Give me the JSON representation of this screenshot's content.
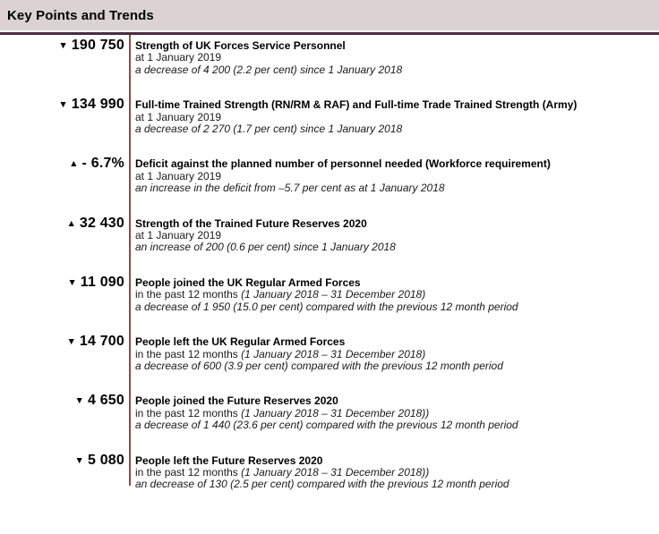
{
  "header": {
    "title": "Key Points and Trends"
  },
  "colors": {
    "header_bar_bg": "#dbd2d4",
    "header_rule": "#4a2d3e",
    "divider_line": "#8e4b45",
    "text": "#1a1a1a"
  },
  "entries": [
    {
      "trend": "down",
      "arrow": "▼",
      "figure": "190 750",
      "title": "Strength of UK Forces Service Personnel",
      "period": "at 1 January 2019",
      "period_italic": "",
      "change": "a decrease of 4 200 (2.2 per cent) since 1 January 2018"
    },
    {
      "trend": "down",
      "arrow": "▼",
      "figure": "134 990",
      "title": "Full-time Trained Strength (RN/RM & RAF) and Full-time Trade Trained Strength (Army)",
      "period": "at 1 January 2019",
      "period_italic": "",
      "change": "a decrease of 2 270 (1.7 per cent) since 1 January 2018"
    },
    {
      "trend": "up",
      "arrow": "▲",
      "figure": "- 6.7%",
      "title": "Deficit against the planned number of personnel needed (Workforce requirement)",
      "period": "at 1 January 2019",
      "period_italic": "",
      "change": "an increase in the deficit from –5.7 per cent as at 1 January 2018"
    },
    {
      "trend": "up",
      "arrow": "▲",
      "figure": "32 430",
      "title": "Strength of the Trained Future Reserves 2020",
      "period": "at 1 January 2019",
      "period_italic": "",
      "change": "an increase of 200 (0.6 per cent) since 1 January 2018"
    },
    {
      "trend": "down",
      "arrow": "▼",
      "figure": "11 090",
      "title": "People joined the UK Regular Armed Forces",
      "period": "in the past 12 months ",
      "period_italic": "(1 January 2018 – 31 December 2018)",
      "change": "a decrease of 1 950 (15.0 per cent) compared with the previous 12 month period"
    },
    {
      "trend": "down",
      "arrow": "▼",
      "figure": "14 700",
      "title": "People left the UK Regular Armed Forces",
      "period": "in the past 12 months ",
      "period_italic": "(1 January 2018 – 31 December 2018)",
      "change": "a decrease of 600 (3.9 per cent) compared with the previous 12 month period"
    },
    {
      "trend": "down",
      "arrow": "▼",
      "figure": "4 650",
      "title": "People joined the Future Reserves 2020",
      "period": "in the past 12 months ",
      "period_italic": "(1 January 2018 – 31 December 2018))",
      "change": "a decrease of 1 440 (23.6 per cent) compared with the previous 12 month period"
    },
    {
      "trend": "down",
      "arrow": "▼",
      "figure": "5 080",
      "title": "People left the Future Reserves 2020",
      "period": "in the past 12 months ",
      "period_italic": "(1 January 2018 – 31 December 2018))",
      "change": "an decrease of 130 (2.5 per cent) compared with the previous 12 month period"
    }
  ]
}
